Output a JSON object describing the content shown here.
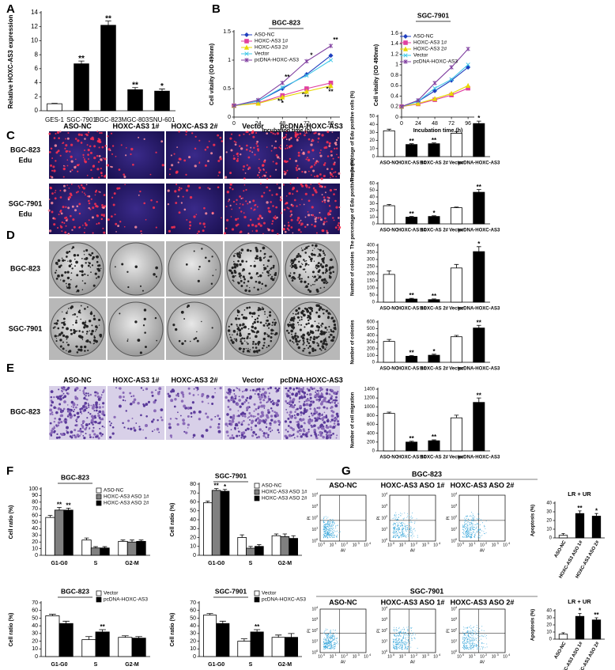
{
  "panel_labels": [
    "A",
    "B",
    "C",
    "D",
    "E",
    "F",
    "G"
  ],
  "image_panels": {
    "edu": {
      "columns": [
        "ASO-NC",
        "HOXC-AS3 1#",
        "HOXC-AS3 2#",
        "Vector",
        "pcDNA-HOXC-AS3"
      ],
      "rows": [
        [
          "BGC-823",
          "Edu"
        ],
        [
          "SGC-7901",
          "Edu"
        ]
      ]
    },
    "colony": {
      "rows": [
        "BGC-823",
        "SGC-7901"
      ]
    },
    "migration": {
      "columns": [
        "ASO-NC",
        "HOXC-AS3 1#",
        "HOXC-AS3 2#",
        "Vector",
        "pcDNA-HOXC-AS3"
      ],
      "rows": [
        "BGC-823"
      ]
    },
    "flow": [
      {
        "title": "BGC-823",
        "columns": [
          "ASO-NC",
          "HOXC-AS3 ASO 1#",
          "HOXC-AS3 ASO 2#"
        ]
      },
      {
        "title": "SGC-7901",
        "columns": [
          "ASO-NC",
          "HOXC-AS3 ASO 1#",
          "HOXC-AS3 ASO 2#"
        ]
      }
    ],
    "flow_axes": {
      "x": "AV",
      "y": "PI",
      "tick_base": "10",
      "tick_exponents": [
        "0",
        "1",
        "2",
        "3",
        "4"
      ]
    }
  },
  "chart_data": [
    {
      "type": "bar",
      "y_label": "Relative HOXC-AS3 expression",
      "categories": [
        "GES-1",
        "SGC-7901",
        "BGC-823",
        "MGC-803",
        "SNU-601"
      ],
      "values": [
        1,
        6.7,
        12.2,
        3,
        2.8
      ],
      "errors": [
        0.05,
        0.4,
        0.6,
        0.3,
        0.3
      ],
      "colors": [
        "#ffffff",
        "#000000",
        "#000000",
        "#000000",
        "#000000"
      ],
      "significance": [
        null,
        "**",
        "**",
        "**",
        "*"
      ],
      "ylim": [
        0,
        14
      ],
      "yticks": [
        0,
        2,
        4,
        6,
        8,
        10,
        12,
        14
      ]
    },
    {
      "type": "line",
      "title": "BGC-823",
      "x_label": "Incubation time (h)",
      "y_label": "Cell vitality (OD 490nm)",
      "x": [
        0,
        24,
        48,
        72,
        96
      ],
      "xlim": [
        0,
        105
      ],
      "xticks": [
        0,
        24,
        48,
        72,
        96
      ],
      "ylim": [
        0,
        1.5
      ],
      "yticks": [
        0,
        0.5,
        1,
        1.5
      ],
      "series": [
        {
          "name": "ASO-NC",
          "color": "#1f3fbf",
          "marker": "diamond",
          "values": [
            0.2,
            0.28,
            0.5,
            0.75,
            1.08
          ]
        },
        {
          "name": "HOXC-AS3 1#",
          "color": "#e040a0",
          "marker": "square",
          "values": [
            0.2,
            0.25,
            0.38,
            0.5,
            0.6
          ],
          "significance": [
            null,
            null,
            "**",
            "**",
            "**"
          ]
        },
        {
          "name": "HOXC-AS3 2#",
          "color": "#e8d800",
          "marker": "triangle",
          "values": [
            0.2,
            0.24,
            0.35,
            0.45,
            0.55
          ],
          "significance": [
            null,
            null,
            "*",
            "**",
            "**"
          ]
        },
        {
          "name": "Vector",
          "color": "#40c8e8",
          "marker": "x",
          "values": [
            0.2,
            0.28,
            0.52,
            0.73,
            1.0
          ]
        },
        {
          "name": "pcDNA-HOXC-AS3",
          "color": "#8040a0",
          "marker": "star",
          "values": [
            0.2,
            0.3,
            0.6,
            0.98,
            1.25
          ],
          "significance": [
            null,
            null,
            "**",
            "*",
            "**"
          ]
        }
      ]
    },
    {
      "type": "line",
      "title": "SGC-7901",
      "x_label": "Incubation time (h)",
      "y_label": "Cell vitality (OD 490nm)",
      "x": [
        0,
        24,
        48,
        72,
        96
      ],
      "xlim": [
        0,
        105
      ],
      "xticks": [
        0,
        24,
        48,
        72,
        96
      ],
      "ylim": [
        0,
        1.6
      ],
      "yticks": [
        0,
        0.2,
        0.4,
        0.6,
        0.8,
        1,
        1.2,
        1.4,
        1.6
      ],
      "series": [
        {
          "name": "ASO-NC",
          "color": "#1f3fbf",
          "marker": "diamond",
          "values": [
            0.2,
            0.3,
            0.5,
            0.7,
            0.95
          ]
        },
        {
          "name": "HOXC-AS3 1#",
          "color": "#e040a0",
          "marker": "square",
          "values": [
            0.2,
            0.25,
            0.33,
            0.42,
            0.55
          ]
        },
        {
          "name": "HOXC-AS3 2#",
          "color": "#e8d800",
          "marker": "triangle",
          "values": [
            0.2,
            0.26,
            0.35,
            0.45,
            0.6
          ]
        },
        {
          "name": "Vector",
          "color": "#40c8e8",
          "marker": "x",
          "values": [
            0.2,
            0.3,
            0.55,
            0.72,
            1.0
          ]
        },
        {
          "name": "pcDNA-HOXC-AS3",
          "color": "#8040a0",
          "marker": "star",
          "values": [
            0.2,
            0.32,
            0.65,
            0.95,
            1.3
          ]
        }
      ]
    },
    {
      "type": "bar",
      "y_label": "The percentage of Edu positive cells (%)",
      "categories": [
        "ASO-NC",
        "HOXC-AS 1#",
        "HOXC-AS 2#",
        "Vector",
        "pcDNA-HOXC-AS3"
      ],
      "values": [
        32,
        15,
        16,
        29,
        41
      ],
      "errors": [
        2,
        1,
        1,
        2,
        3
      ],
      "colors": [
        "#ffffff",
        "#000000",
        "#000000",
        "#ffffff",
        "#000000"
      ],
      "significance": [
        null,
        "**",
        "**",
        null,
        "*"
      ],
      "ylim": [
        0,
        50
      ],
      "yticks": [
        0,
        10,
        20,
        30,
        40,
        50
      ]
    },
    {
      "type": "bar",
      "y_label": "The percentage of Edu positive cells (%)",
      "categories": [
        "ASO-NC",
        "HOXC-AS 1#",
        "HOXC-AS 2#",
        "Vector",
        "pcDNA-HOXC-AS3"
      ],
      "values": [
        27,
        10,
        11,
        24,
        47
      ],
      "errors": [
        2,
        1,
        1,
        1,
        4
      ],
      "colors": [
        "#ffffff",
        "#000000",
        "#000000",
        "#ffffff",
        "#000000"
      ],
      "significance": [
        null,
        "**",
        "*",
        null,
        "**"
      ],
      "ylim": [
        0,
        60
      ],
      "yticks": [
        0,
        10,
        20,
        30,
        40,
        50,
        60
      ]
    },
    {
      "type": "bar",
      "y_label": "Number of colonies",
      "categories": [
        "ASO-NC",
        "HOXC-AS 1#",
        "HOXC-AS 2#",
        "Vector",
        "pcDNA-HOXC-AS3"
      ],
      "values": [
        195,
        22,
        18,
        240,
        355
      ],
      "errors": [
        25,
        5,
        5,
        25,
        35
      ],
      "colors": [
        "#ffffff",
        "#000000",
        "#000000",
        "#ffffff",
        "#000000"
      ],
      "significance": [
        null,
        "**",
        "**",
        null,
        "*"
      ],
      "ylim": [
        0,
        400
      ],
      "yticks": [
        0,
        50,
        100,
        150,
        200,
        250,
        300,
        350,
        400
      ]
    },
    {
      "type": "bar",
      "y_label": "Number of colonies",
      "categories": [
        "ASO-NC",
        "HOXC-AS 1#",
        "HOXC-AS 2#",
        "Vector",
        "pcDNA-HOXC-AS3"
      ],
      "values": [
        310,
        90,
        105,
        380,
        510
      ],
      "errors": [
        30,
        10,
        15,
        20,
        40
      ],
      "colors": [
        "#ffffff",
        "#000000",
        "#000000",
        "#ffffff",
        "#000000"
      ],
      "significance": [
        null,
        "**",
        "*",
        null,
        "**"
      ],
      "ylim": [
        0,
        600
      ],
      "yticks": [
        0,
        100,
        200,
        300,
        400,
        500,
        600
      ]
    },
    {
      "type": "bar",
      "y_label": "Number of cell migration",
      "categories": [
        "ASO-NC",
        "HOXC-AS 1#",
        "HOXC-AS 2#",
        "Vector",
        "pcDNA-HOXC-AS3"
      ],
      "values": [
        850,
        200,
        230,
        750,
        1100
      ],
      "errors": [
        30,
        20,
        20,
        60,
        100
      ],
      "colors": [
        "#ffffff",
        "#000000",
        "#000000",
        "#ffffff",
        "#000000"
      ],
      "significance": [
        null,
        "**",
        "**",
        null,
        "**"
      ],
      "ylim": [
        0,
        1400
      ],
      "yticks": [
        0,
        200,
        400,
        600,
        800,
        1000,
        1200,
        1400
      ]
    },
    {
      "type": "bar",
      "title": "BGC-823",
      "y_label": "Cell ratio (%)",
      "categories": [
        "G1-G0",
        "S",
        "G2-M"
      ],
      "ylim": [
        0,
        100
      ],
      "yticks": [
        0,
        10,
        20,
        30,
        40,
        50,
        60,
        70,
        80,
        90,
        100
      ],
      "series": [
        {
          "name": "ASO-NC",
          "color": "#ffffff",
          "values": [
            57,
            23,
            21
          ],
          "errors": [
            3,
            3,
            2
          ]
        },
        {
          "name": "HOXC-AS3 ASO 1#",
          "color": "#808080",
          "values": [
            68,
            11,
            20
          ],
          "errors": [
            4,
            2,
            3
          ],
          "significance": [
            "**",
            null,
            null
          ]
        },
        {
          "name": "HOXC-AS3 ASO 2#",
          "color": "#000000",
          "values": [
            68,
            11,
            21
          ],
          "errors": [
            3,
            2,
            2
          ],
          "significance": [
            "**",
            null,
            null
          ]
        }
      ]
    },
    {
      "type": "bar",
      "title": "SGC-7901",
      "y_label": "Cell ratio (%)",
      "categories": [
        "G1-G0",
        "S",
        "G2-M"
      ],
      "ylim": [
        0,
        80
      ],
      "yticks": [
        0,
        10,
        20,
        30,
        40,
        50,
        60,
        70,
        80
      ],
      "series": [
        {
          "name": "ASO-NC",
          "color": "#ffffff",
          "values": [
            59,
            20,
            22
          ],
          "errors": [
            2,
            3,
            2
          ]
        },
        {
          "name": "HOXC-AS3 ASO 1#",
          "color": "#808080",
          "values": [
            73,
            8,
            21
          ],
          "errors": [
            2,
            2,
            3
          ],
          "significance": [
            "**",
            null,
            null
          ]
        },
        {
          "name": "HOXC-AS3 ASO 2#",
          "color": "#000000",
          "values": [
            72,
            10,
            19
          ],
          "errors": [
            2,
            2,
            3
          ],
          "significance": [
            "*",
            null,
            null
          ]
        }
      ]
    },
    {
      "type": "bar",
      "title": "BGC-823",
      "y_label": "Cell ratio (%)",
      "categories": [
        "G1-G0",
        "S",
        "G2-M"
      ],
      "ylim": [
        0,
        70
      ],
      "yticks": [
        0,
        10,
        20,
        30,
        40,
        50,
        60,
        70
      ],
      "series": [
        {
          "name": "Vector",
          "color": "#ffffff",
          "values": [
            53,
            22,
            25
          ],
          "errors": [
            2,
            4,
            2
          ]
        },
        {
          "name": "pcDNA-HOXC-AS3",
          "color": "#000000",
          "values": [
            43,
            32,
            24
          ],
          "errors": [
            3,
            3,
            2
          ],
          "significance": [
            null,
            "**",
            null
          ]
        }
      ]
    },
    {
      "type": "bar",
      "title": "SGC-7901",
      "y_label": "Cell ratio (%)",
      "categories": [
        "G1-G0",
        "S",
        "G2-M"
      ],
      "ylim": [
        0,
        70
      ],
      "yticks": [
        0,
        10,
        20,
        30,
        40,
        50,
        60,
        70
      ],
      "series": [
        {
          "name": "Vector",
          "color": "#ffffff",
          "values": [
            54,
            20,
            25
          ],
          "errors": [
            2,
            3,
            3
          ]
        },
        {
          "name": "pcDNA-HOXC-AS3",
          "color": "#000000",
          "values": [
            43,
            32,
            25
          ],
          "errors": [
            3,
            3,
            5
          ],
          "significance": [
            null,
            "**",
            null
          ]
        }
      ]
    },
    {
      "type": "bar",
      "title": "LR + UR",
      "y_label": "Apoptosis (%)",
      "rotate_labels": true,
      "categories": [
        "ASO-NC",
        "HOXC-AS3 ASO 1#",
        "HOXC-AS3 ASO 2#"
      ],
      "values": [
        3,
        28,
        25
      ],
      "errors": [
        2,
        3,
        3
      ],
      "colors": [
        "#ffffff",
        "#000000",
        "#000000"
      ],
      "significance": [
        null,
        "**",
        "*"
      ],
      "ylim": [
        0,
        40
      ],
      "yticks": [
        0,
        10,
        20,
        30,
        40
      ]
    },
    {
      "type": "bar",
      "title": "LR + UR",
      "y_label": "Apoptosis (%)",
      "rotate_labels": true,
      "categories": [
        "ASO-NC",
        "HOXC-AS3 ASO 1#",
        "HOXC-AS3 ASO 2#"
      ],
      "values": [
        7,
        32,
        27
      ],
      "errors": [
        2,
        4,
        3
      ],
      "colors": [
        "#ffffff",
        "#000000",
        "#000000"
      ],
      "significance": [
        null,
        "*",
        "**"
      ],
      "ylim": [
        0,
        40
      ],
      "yticks": [
        0,
        10,
        20,
        30,
        40
      ]
    }
  ]
}
